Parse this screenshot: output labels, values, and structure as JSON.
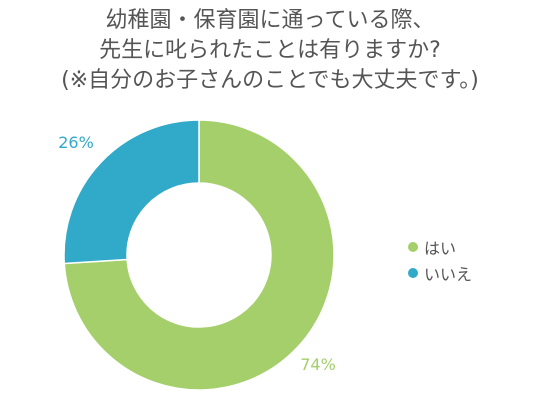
{
  "chart_data": {
    "type": "pie",
    "title_lines": [
      "幼稚園・保育園に通っている際、",
      "先生に叱られたことは有りますか?",
      "(※自分のお子さんのことでも大丈夫です。)"
    ],
    "slices": [
      {
        "name": "はい",
        "value": 74,
        "label": "74%",
        "color": "#a4cf6a"
      },
      {
        "name": "いいえ",
        "value": 26,
        "label": "26%",
        "color": "#31a9c8"
      }
    ],
    "donut": true,
    "legend_position": "right"
  }
}
